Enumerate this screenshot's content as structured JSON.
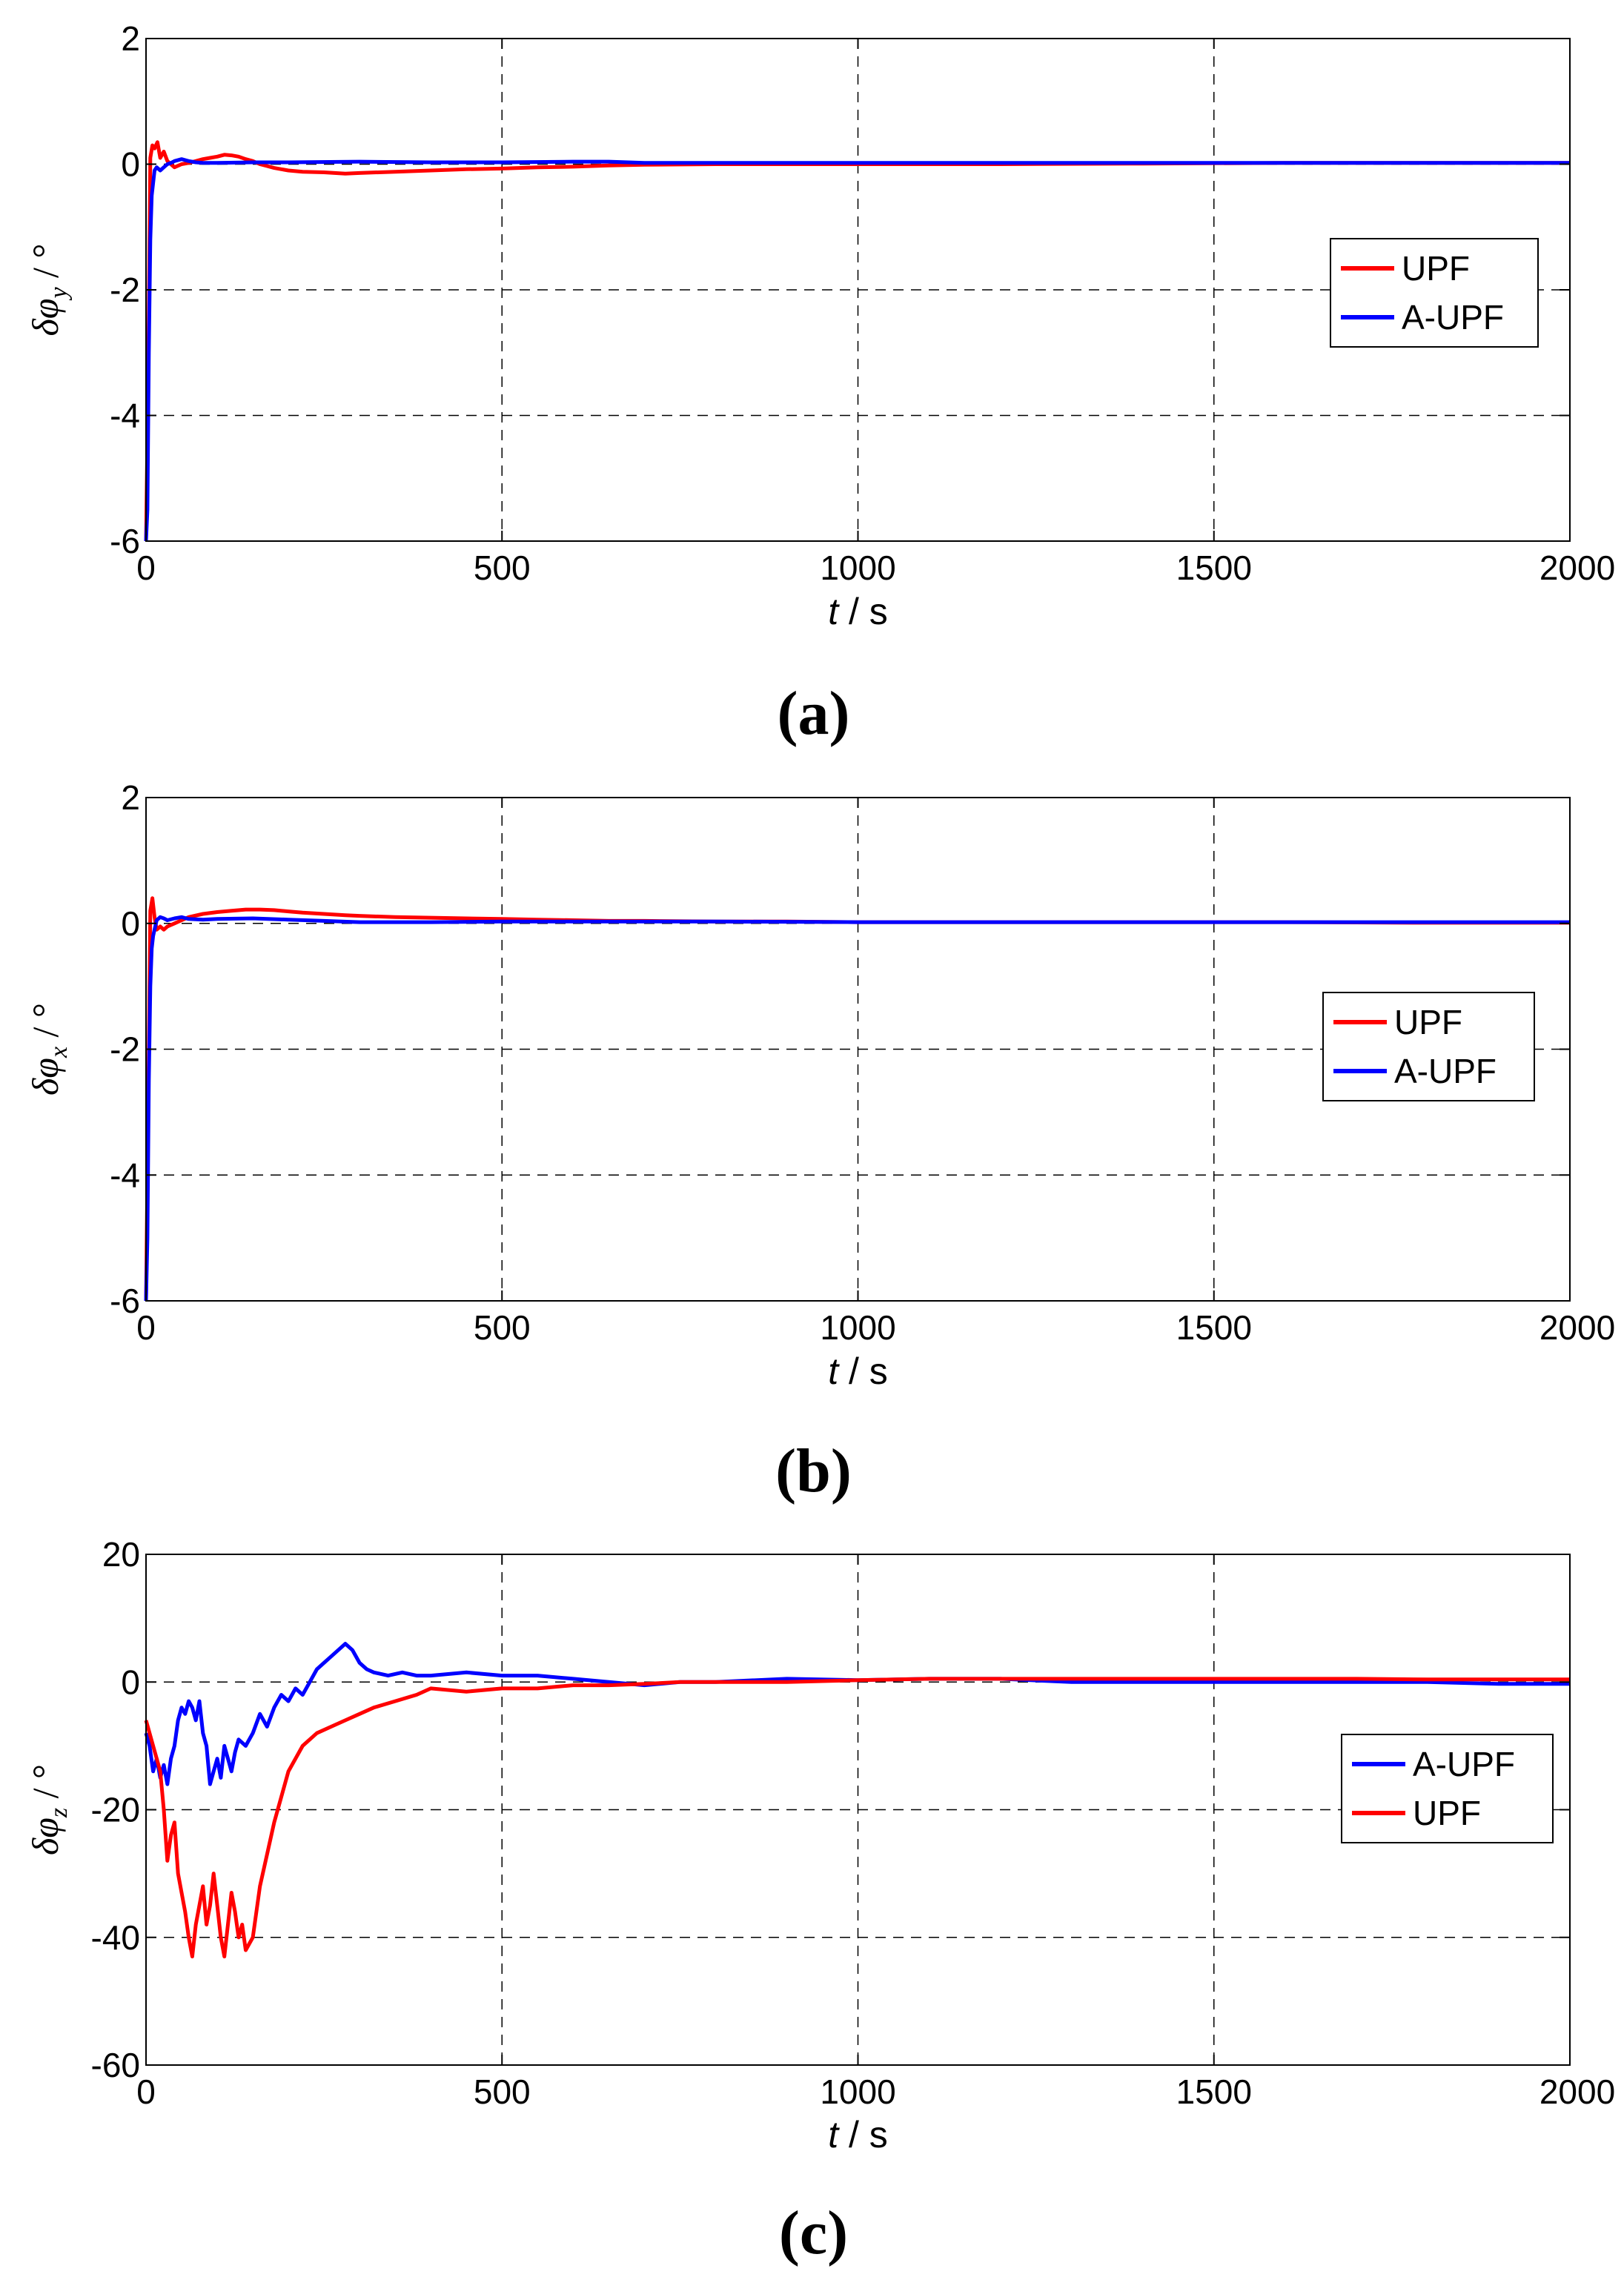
{
  "chart_data": [
    {
      "type": "line",
      "panel_label": "(a)",
      "xlabel": "t  / s",
      "ylabel": {
        "symbol": "δφ",
        "sub": "y",
        "unit": "/ °"
      },
      "xlim": [
        0,
        2000
      ],
      "ylim": [
        -6,
        2
      ],
      "xticks": [
        0,
        500,
        1000,
        1500,
        2000
      ],
      "yticks": [
        -6,
        -4,
        -2,
        0,
        2
      ],
      "grid": "dashed",
      "legend_position": "right-middle",
      "legend": [
        "UPF",
        "A-UPF"
      ],
      "series": [
        {
          "name": "UPF",
          "color": "#ff0000",
          "x": [
            0,
            3,
            6,
            9,
            12,
            16,
            20,
            25,
            30,
            40,
            50,
            60,
            70,
            80,
            90,
            100,
            110,
            120,
            130,
            140,
            150,
            160,
            170,
            180,
            190,
            200,
            220,
            250,
            280,
            300,
            350,
            400,
            450,
            500,
            550,
            600,
            650,
            700,
            800,
            1000,
            1200,
            1400,
            1600,
            1800,
            2000
          ],
          "y": [
            -6,
            -3.5,
            0.1,
            0.3,
            0.25,
            0.35,
            0.1,
            0.2,
            0.05,
            -0.05,
            0.0,
            0.02,
            0.05,
            0.08,
            0.1,
            0.12,
            0.15,
            0.14,
            0.12,
            0.08,
            0.05,
            0.0,
            -0.03,
            -0.06,
            -0.08,
            -0.1,
            -0.12,
            -0.13,
            -0.15,
            -0.14,
            -0.12,
            -0.1,
            -0.08,
            -0.07,
            -0.05,
            -0.04,
            -0.02,
            -0.01,
            0.0,
            0.0,
            0.0,
            0.01,
            0.02,
            0.02,
            0.02
          ]
        },
        {
          "name": "A-UPF",
          "color": "#0000ff",
          "x": [
            0,
            2,
            4,
            6,
            8,
            10,
            12,
            15,
            20,
            25,
            30,
            35,
            40,
            50,
            60,
            70,
            80,
            100,
            150,
            200,
            300,
            400,
            500,
            600,
            650,
            700,
            800,
            1000,
            1200,
            1400,
            1600,
            1800,
            2000
          ],
          "y": [
            -6,
            -5.5,
            -3,
            -1.2,
            -0.5,
            -0.3,
            -0.1,
            -0.05,
            -0.1,
            -0.05,
            0.0,
            0.02,
            0.05,
            0.08,
            0.05,
            0.03,
            0.02,
            0.02,
            0.03,
            0.03,
            0.04,
            0.03,
            0.03,
            0.04,
            0.04,
            0.02,
            0.02,
            0.02,
            0.02,
            0.02,
            0.02,
            0.02,
            0.02
          ]
        }
      ]
    },
    {
      "type": "line",
      "panel_label": "(b)",
      "xlabel": "t  / s",
      "ylabel": {
        "symbol": "δφ",
        "sub": "x",
        "unit": "/ °"
      },
      "xlim": [
        0,
        2000
      ],
      "ylim": [
        -6,
        2
      ],
      "xticks": [
        0,
        500,
        1000,
        1500,
        2000
      ],
      "yticks": [
        -6,
        -4,
        -2,
        0,
        2
      ],
      "grid": "dashed",
      "legend_position": "right-middle",
      "legend": [
        "UPF",
        "A-UPF"
      ],
      "series": [
        {
          "name": "UPF",
          "color": "#ff0000",
          "x": [
            0,
            3,
            6,
            9,
            12,
            15,
            20,
            25,
            30,
            40,
            50,
            60,
            80,
            100,
            120,
            140,
            160,
            180,
            200,
            220,
            250,
            280,
            300,
            350,
            400,
            450,
            500,
            550,
            600,
            650,
            700,
            800,
            900,
            1000,
            1200,
            1400,
            1600,
            1800,
            2000
          ],
          "y": [
            -6,
            -3,
            0.2,
            0.4,
            0.1,
            -0.1,
            -0.05,
            -0.1,
            -0.05,
            0.0,
            0.05,
            0.1,
            0.15,
            0.18,
            0.2,
            0.22,
            0.22,
            0.21,
            0.19,
            0.17,
            0.15,
            0.13,
            0.12,
            0.1,
            0.09,
            0.08,
            0.07,
            0.06,
            0.05,
            0.04,
            0.04,
            0.03,
            0.03,
            0.02,
            0.02,
            0.02,
            0.02,
            0.01,
            0.01
          ]
        },
        {
          "name": "A-UPF",
          "color": "#0000ff",
          "x": [
            0,
            2,
            4,
            6,
            8,
            10,
            12,
            15,
            20,
            25,
            30,
            40,
            50,
            60,
            80,
            100,
            150,
            200,
            250,
            300,
            400,
            500,
            600,
            700,
            800,
            1000,
            1200,
            1400,
            1600,
            1800,
            2000
          ],
          "y": [
            -6,
            -5,
            -2.5,
            -1,
            -0.4,
            -0.2,
            -0.1,
            0.05,
            0.1,
            0.08,
            0.05,
            0.08,
            0.1,
            0.07,
            0.06,
            0.07,
            0.08,
            0.06,
            0.04,
            0.02,
            0.02,
            0.03,
            0.03,
            0.03,
            0.03,
            0.02,
            0.02,
            0.02,
            0.02,
            0.02,
            0.02
          ]
        }
      ]
    },
    {
      "type": "line",
      "panel_label": "(c)",
      "xlabel": "t  / s",
      "ylabel": {
        "symbol": "δφ",
        "sub": "z",
        "unit": "/ °"
      },
      "xlim": [
        0,
        2000
      ],
      "ylim": [
        -60,
        20
      ],
      "xticks": [
        0,
        500,
        1000,
        1500,
        2000
      ],
      "yticks": [
        -60,
        -40,
        -20,
        0,
        20
      ],
      "grid": "dashed",
      "legend_position": "right-middle",
      "legend": [
        "A-UPF",
        "UPF"
      ],
      "series": [
        {
          "name": "A-UPF",
          "color": "#0000ff",
          "x": [
            0,
            5,
            10,
            15,
            20,
            25,
            30,
            35,
            40,
            45,
            50,
            55,
            60,
            65,
            70,
            75,
            80,
            85,
            90,
            95,
            100,
            105,
            110,
            115,
            120,
            125,
            130,
            140,
            150,
            160,
            170,
            180,
            190,
            200,
            210,
            220,
            230,
            240,
            250,
            260,
            270,
            280,
            290,
            300,
            310,
            320,
            340,
            360,
            380,
            400,
            450,
            500,
            550,
            600,
            650,
            700,
            750,
            800,
            900,
            1000,
            1100,
            1200,
            1300,
            1400,
            1500,
            1600,
            1700,
            1800,
            1900,
            2000
          ],
          "y": [
            -8,
            -10,
            -14,
            -12,
            -15,
            -13,
            -16,
            -12,
            -10,
            -6,
            -4,
            -5,
            -3,
            -4,
            -6,
            -3,
            -8,
            -10,
            -16,
            -14,
            -12,
            -15,
            -10,
            -12,
            -14,
            -11,
            -9,
            -10,
            -8,
            -5,
            -7,
            -4,
            -2,
            -3,
            -1,
            -2,
            0,
            2,
            3,
            4,
            5,
            6,
            5,
            3,
            2,
            1.5,
            1,
            1.5,
            1,
            1,
            1.5,
            1,
            1,
            0.5,
            0,
            -0.5,
            0,
            0,
            0.5,
            0.3,
            0.5,
            0.5,
            0,
            0,
            0,
            0,
            0,
            0,
            -0.3,
            -0.3
          ]
        },
        {
          "name": "UPF",
          "color": "#ff0000",
          "x": [
            0,
            5,
            10,
            15,
            20,
            25,
            30,
            35,
            40,
            45,
            50,
            55,
            60,
            65,
            70,
            75,
            80,
            85,
            90,
            95,
            100,
            105,
            110,
            115,
            120,
            125,
            130,
            135,
            140,
            145,
            150,
            155,
            160,
            170,
            180,
            190,
            200,
            220,
            240,
            260,
            280,
            300,
            320,
            350,
            380,
            400,
            450,
            500,
            550,
            600,
            650,
            700,
            750,
            800,
            900,
            1000,
            1100,
            1200,
            1300,
            1400,
            1500,
            1600,
            1700,
            1800,
            1900,
            2000
          ],
          "y": [
            -6,
            -8,
            -10,
            -12,
            -14,
            -20,
            -28,
            -24,
            -22,
            -30,
            -33,
            -36,
            -40,
            -43,
            -38,
            -35,
            -32,
            -38,
            -35,
            -30,
            -35,
            -40,
            -43,
            -38,
            -33,
            -36,
            -40,
            -38,
            -42,
            -41,
            -40,
            -36,
            -32,
            -27,
            -22,
            -18,
            -14,
            -10,
            -8,
            -7,
            -6,
            -5,
            -4,
            -3,
            -2,
            -1,
            -1.5,
            -1,
            -1,
            -0.5,
            -0.5,
            -0.3,
            0,
            0,
            0,
            0.3,
            0.5,
            0.5,
            0.5,
            0.5,
            0.5,
            0.5,
            0.5,
            0.4,
            0.4,
            0.4
          ]
        }
      ]
    }
  ]
}
